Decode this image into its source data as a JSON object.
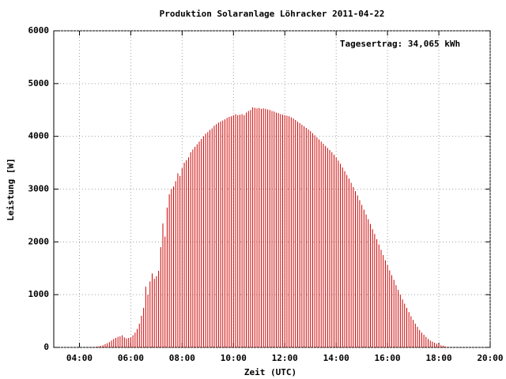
{
  "chart_data": {
    "type": "impulse",
    "title": "Produktion Solaranlage Löhracker 2011-04-22",
    "annotation": "Tagesertrag: 34,065 kWh",
    "xlabel": "Zeit (UTC)",
    "ylabel": "Leistung [W]",
    "color": "#cc0000",
    "grid": true,
    "xlim": [
      "03:00",
      "20:00"
    ],
    "xticks": [
      "04:00",
      "06:00",
      "08:00",
      "10:00",
      "12:00",
      "14:00",
      "16:00",
      "18:00",
      "20:00"
    ],
    "ylim": [
      0,
      6000
    ],
    "yticks": [
      0,
      1000,
      2000,
      3000,
      4000,
      5000,
      6000
    ],
    "x": [
      "04:35",
      "04:40",
      "04:45",
      "04:50",
      "04:55",
      "05:00",
      "05:05",
      "05:10",
      "05:15",
      "05:20",
      "05:25",
      "05:30",
      "05:35",
      "05:40",
      "05:45",
      "05:50",
      "05:55",
      "06:00",
      "06:05",
      "06:10",
      "06:15",
      "06:20",
      "06:25",
      "06:30",
      "06:35",
      "06:40",
      "06:45",
      "06:50",
      "06:55",
      "07:00",
      "07:05",
      "07:10",
      "07:15",
      "07:20",
      "07:25",
      "07:30",
      "07:35",
      "07:40",
      "07:45",
      "07:50",
      "07:55",
      "08:00",
      "08:05",
      "08:10",
      "08:15",
      "08:20",
      "08:25",
      "08:30",
      "08:35",
      "08:40",
      "08:45",
      "08:50",
      "08:55",
      "09:00",
      "09:05",
      "09:10",
      "09:15",
      "09:20",
      "09:25",
      "09:30",
      "09:35",
      "09:40",
      "09:45",
      "09:50",
      "09:55",
      "10:00",
      "10:05",
      "10:10",
      "10:15",
      "10:20",
      "10:25",
      "10:30",
      "10:35",
      "10:40",
      "10:45",
      "10:50",
      "10:55",
      "11:00",
      "11:05",
      "11:10",
      "11:15",
      "11:20",
      "11:25",
      "11:30",
      "11:35",
      "11:40",
      "11:45",
      "11:50",
      "11:55",
      "12:00",
      "12:05",
      "12:10",
      "12:15",
      "12:20",
      "12:25",
      "12:30",
      "12:35",
      "12:40",
      "12:45",
      "12:50",
      "12:55",
      "13:00",
      "13:05",
      "13:10",
      "13:15",
      "13:20",
      "13:25",
      "13:30",
      "13:35",
      "13:40",
      "13:45",
      "13:50",
      "13:55",
      "14:00",
      "14:05",
      "14:10",
      "14:15",
      "14:20",
      "14:25",
      "14:30",
      "14:35",
      "14:40",
      "14:45",
      "14:50",
      "14:55",
      "15:00",
      "15:05",
      "15:10",
      "15:15",
      "15:20",
      "15:25",
      "15:30",
      "15:35",
      "15:40",
      "15:45",
      "15:50",
      "15:55",
      "16:00",
      "16:05",
      "16:10",
      "16:15",
      "16:20",
      "16:25",
      "16:30",
      "16:35",
      "16:40",
      "16:45",
      "16:50",
      "16:55",
      "17:00",
      "17:05",
      "17:10",
      "17:15",
      "17:20",
      "17:25",
      "17:30",
      "17:35",
      "17:40",
      "17:45",
      "17:50",
      "17:55",
      "18:00",
      "18:05",
      "18:10",
      "18:15",
      "18:20"
    ],
    "values": [
      10,
      15,
      20,
      30,
      40,
      60,
      80,
      100,
      130,
      160,
      180,
      200,
      210,
      230,
      190,
      170,
      180,
      190,
      230,
      280,
      350,
      450,
      600,
      750,
      1150,
      1000,
      1250,
      1400,
      1300,
      1350,
      1450,
      1900,
      2350,
      2100,
      2650,
      2900,
      3000,
      3050,
      3150,
      3300,
      3250,
      3400,
      3500,
      3550,
      3600,
      3700,
      3750,
      3800,
      3850,
      3900,
      3950,
      4000,
      4050,
      4080,
      4120,
      4150,
      4200,
      4230,
      4260,
      4280,
      4300,
      4320,
      4350,
      4370,
      4380,
      4400,
      4420,
      4400,
      4410,
      4420,
      4400,
      4450,
      4480,
      4500,
      4550,
      4540,
      4530,
      4540,
      4520,
      4530,
      4520,
      4510,
      4500,
      4480,
      4470,
      4450,
      4440,
      4420,
      4410,
      4400,
      4390,
      4380,
      4360,
      4340,
      4310,
      4280,
      4250,
      4220,
      4190,
      4160,
      4130,
      4100,
      4060,
      4020,
      3980,
      3940,
      3900,
      3860,
      3820,
      3780,
      3740,
      3700,
      3650,
      3600,
      3540,
      3480,
      3410,
      3340,
      3270,
      3200,
      3120,
      3040,
      2960,
      2880,
      2790,
      2700,
      2610,
      2520,
      2430,
      2340,
      2240,
      2150,
      2050,
      1950,
      1850,
      1750,
      1650,
      1560,
      1460,
      1370,
      1280,
      1180,
      1090,
      1000,
      910,
      830,
      750,
      670,
      590,
      520,
      450,
      390,
      330,
      280,
      240,
      200,
      160,
      130,
      110,
      90,
      70,
      55,
      40,
      30,
      20,
      10
    ]
  }
}
